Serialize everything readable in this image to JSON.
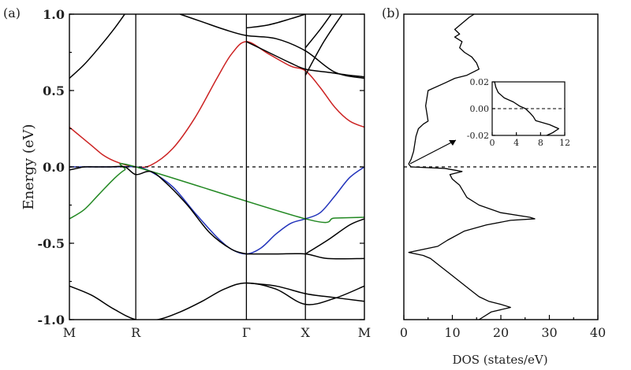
{
  "chart_data": [
    {
      "type": "line",
      "panel_label": "(a)",
      "ylabel": "Energy (eV)",
      "ylim": [
        -1.0,
        1.0
      ],
      "yticks": [
        -1.0,
        -0.5,
        0.0,
        0.5,
        1.0
      ],
      "ytick_labels": [
        "-1.0",
        "-0.5",
        "0.0",
        "0.5",
        "1.0"
      ],
      "k_points": [
        {
          "label": "M",
          "pos": 0.0
        },
        {
          "label": "R",
          "pos": 0.9
        },
        {
          "label": "Γ",
          "pos": 2.4
        },
        {
          "label": "X",
          "pos": 3.2
        },
        {
          "label": "M",
          "pos": 4.0
        }
      ],
      "xlim": [
        0.0,
        4.0
      ],
      "fermi_level": 0.0,
      "series": [
        {
          "color": "#cc2222",
          "x": [
            0.0,
            0.15,
            0.3,
            0.45,
            0.6,
            0.75,
            0.9,
            1.1,
            1.4,
            1.7,
            2.0,
            2.2,
            2.4,
            2.7,
            3.0,
            3.2,
            3.4,
            3.6,
            3.8,
            4.0
          ],
          "y": [
            0.26,
            0.2,
            0.14,
            0.08,
            0.04,
            0.015,
            0.0,
            0.01,
            0.12,
            0.32,
            0.58,
            0.74,
            0.82,
            0.74,
            0.66,
            0.63,
            0.52,
            0.39,
            0.3,
            0.26
          ]
        },
        {
          "color": "#2233bb",
          "x": [
            0.0,
            0.3,
            0.6,
            0.9,
            1.1,
            1.4,
            1.7,
            2.0,
            2.2,
            2.4,
            2.6,
            2.8,
            3.0,
            3.2,
            3.4,
            3.6,
            3.8,
            4.0
          ],
          "y": [
            0.0,
            0.0,
            0.0,
            0.0,
            -0.03,
            -0.13,
            -0.3,
            -0.46,
            -0.54,
            -0.57,
            -0.53,
            -0.44,
            -0.37,
            -0.34,
            -0.3,
            -0.19,
            -0.07,
            0.0
          ]
        },
        {
          "color": "#228822",
          "x": [
            0.0,
            0.2,
            0.4,
            0.6,
            0.75,
            0.9,
            3.2,
            3.6,
            4.0
          ],
          "y": [
            -0.34,
            -0.28,
            -0.18,
            -0.08,
            -0.02,
            0.0,
            -0.34,
            -0.335,
            -0.33
          ]
        },
        {
          "color": "#000000",
          "x": [
            0.0,
            0.1,
            0.2,
            0.35,
            0.55,
            0.75,
            0.9,
            1.1,
            1.3,
            1.6,
            1.9,
            2.2,
            2.4
          ],
          "y": [
            -0.02,
            -0.01,
            0.0,
            0.0,
            0.0,
            0.0,
            -0.05,
            -0.03,
            -0.1,
            -0.25,
            -0.43,
            -0.54,
            -0.57
          ]
        },
        {
          "color": "#000000",
          "x": [
            2.4,
            2.8,
            3.2,
            3.5,
            4.0
          ],
          "y": [
            -0.57,
            -0.57,
            -0.57,
            -0.6,
            -0.6
          ]
        },
        {
          "color": "#000000",
          "x": [
            0.0,
            0.3,
            0.6,
            0.9,
            1.2,
            1.5,
            1.8,
            2.1,
            2.4,
            2.8,
            3.2,
            3.6,
            4.0
          ],
          "y": [
            -0.78,
            -0.84,
            -0.93,
            -1.0,
            -1.0,
            -0.95,
            -0.88,
            -0.8,
            -0.76,
            -0.8,
            -0.9,
            -0.86,
            -0.78
          ]
        },
        {
          "color": "#000000",
          "x": [
            2.4,
            2.8,
            3.2,
            3.5,
            4.0
          ],
          "y": [
            -0.76,
            -0.78,
            -0.83,
            -0.85,
            -0.88
          ]
        },
        {
          "color": "#000000",
          "x": [
            3.2,
            3.5,
            3.8,
            4.0
          ],
          "y": [
            -0.57,
            -0.48,
            -0.38,
            -0.34
          ]
        },
        {
          "color": "#000000",
          "x": [
            0.0,
            0.2,
            0.4,
            0.6,
            0.75
          ],
          "y": [
            0.58,
            0.67,
            0.78,
            0.9,
            1.0
          ]
        },
        {
          "color": "#000000",
          "x": [
            1.5,
            1.8,
            2.1,
            2.4,
            2.8,
            3.2,
            3.6,
            4.0
          ],
          "y": [
            1.0,
            0.95,
            0.9,
            0.86,
            0.84,
            0.76,
            0.62,
            0.58
          ]
        },
        {
          "color": "#000000",
          "x": [
            2.4,
            2.7,
            3.0,
            3.2,
            3.5,
            3.8,
            4.0
          ],
          "y": [
            0.82,
            0.75,
            0.68,
            0.64,
            0.62,
            0.6,
            0.59
          ]
        },
        {
          "color": "#000000",
          "x": [
            2.4,
            2.7,
            3.0,
            3.2
          ],
          "y": [
            0.91,
            0.93,
            0.97,
            1.0
          ]
        },
        {
          "color": "#000000",
          "x": [
            3.2,
            3.45,
            3.7
          ],
          "y": [
            0.6,
            0.82,
            1.0
          ]
        },
        {
          "color": "#000000",
          "x": [
            3.2,
            3.4,
            3.55
          ],
          "y": [
            0.78,
            0.9,
            1.0
          ]
        }
      ]
    },
    {
      "type": "line",
      "panel_label": "(b)",
      "xlabel": "DOS (states/eV)",
      "xlim": [
        0,
        40
      ],
      "xticks": [
        0,
        10,
        20,
        30,
        40
      ],
      "xtick_labels": [
        "0",
        "10",
        "20",
        "30",
        "40"
      ],
      "ylim": [
        -1.0,
        1.0
      ],
      "fermi_level": 0.0,
      "dos": {
        "energy": [
          1.0,
          0.98,
          0.94,
          0.9,
          0.87,
          0.85,
          0.82,
          0.78,
          0.75,
          0.72,
          0.68,
          0.64,
          0.6,
          0.58,
          0.55,
          0.5,
          0.4,
          0.3,
          0.28,
          0.25,
          0.2,
          0.1,
          0.05,
          0.02,
          0.01,
          0.0,
          -0.01,
          -0.03,
          -0.05,
          -0.08,
          -0.12,
          -0.2,
          -0.25,
          -0.3,
          -0.33,
          -0.34,
          -0.35,
          -0.38,
          -0.42,
          -0.48,
          -0.52,
          -0.54,
          -0.56,
          -0.58,
          -0.6,
          -0.65,
          -0.7,
          -0.75,
          -0.8,
          -0.85,
          -0.88,
          -0.9,
          -0.92,
          -0.95,
          -1.0
        ],
        "dos": [
          14.5,
          13.5,
          12.0,
          10.5,
          11.5,
          10.5,
          12.0,
          11.5,
          12.5,
          14.0,
          15.0,
          15.5,
          13.0,
          10.5,
          8.5,
          5.0,
          4.5,
          5.0,
          4.0,
          3.0,
          2.5,
          2.0,
          1.5,
          1.0,
          1.2,
          1.5,
          8.5,
          12.0,
          9.5,
          10.0,
          11.5,
          13.0,
          15.5,
          20.0,
          26.0,
          27.0,
          22.0,
          17.0,
          12.5,
          9.0,
          7.0,
          4.0,
          1.0,
          4.0,
          5.5,
          7.5,
          9.5,
          11.5,
          13.5,
          15.5,
          17.5,
          20.0,
          22.0,
          18.0,
          15.5
        ]
      },
      "inset": {
        "ylim": [
          -0.02,
          0.02
        ],
        "yticks": [
          -0.02,
          0.0,
          0.02
        ],
        "ytick_labels": [
          "-0.02",
          "0.00",
          "0.02"
        ],
        "xlim": [
          0,
          12
        ],
        "xticks": [
          0,
          4,
          8,
          12
        ],
        "xtick_labels": [
          "0",
          "4",
          "8",
          "12"
        ],
        "energy": [
          0.02,
          0.016,
          0.012,
          0.008,
          0.005,
          0.002,
          0.0,
          -0.003,
          -0.006,
          -0.009,
          -0.012,
          -0.015,
          -0.018,
          -0.02
        ],
        "dos": [
          0.4,
          0.6,
          1.0,
          2.0,
          3.5,
          4.5,
          5.5,
          6.2,
          6.8,
          7.2,
          9.5,
          11.0,
          10.0,
          9.0
        ]
      }
    }
  ]
}
